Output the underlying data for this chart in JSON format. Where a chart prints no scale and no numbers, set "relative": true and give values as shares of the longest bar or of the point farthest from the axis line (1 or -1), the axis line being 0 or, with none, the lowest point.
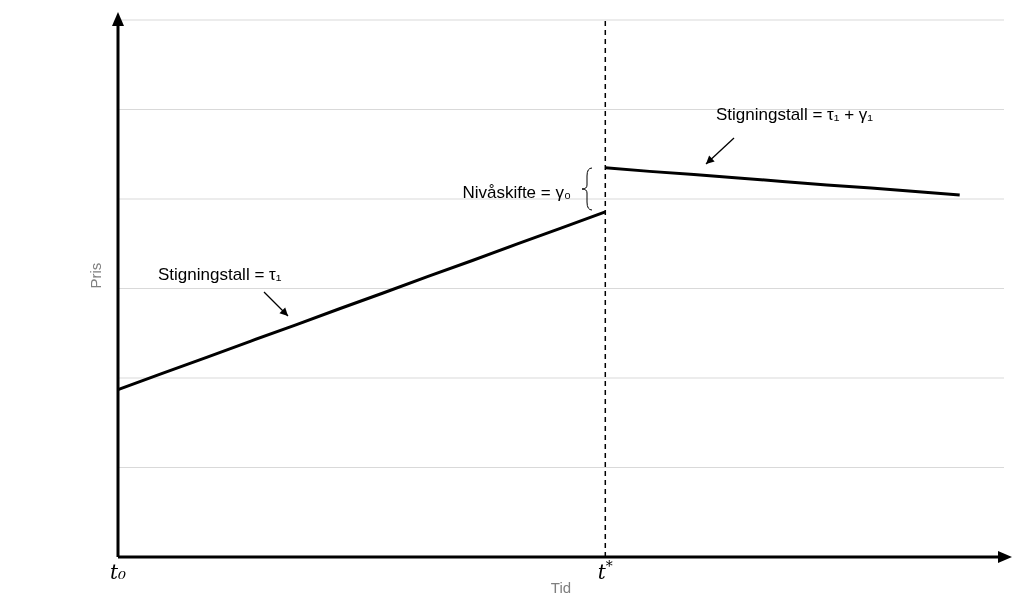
{
  "chart_data": {
    "type": "line",
    "relative": true,
    "xlabel": "Tid",
    "ylabel": "Pris",
    "categories": [
      "t₀",
      null,
      null,
      null,
      null,
      null,
      null,
      null,
      null,
      null,
      null,
      "t$^{*}$",
      null,
      null,
      null,
      null,
      null,
      null,
      null,
      null,
      null
    ],
    "series": [
      {
        "color": "#000000",
        "values": [
          0.43,
          0.472,
          0.513,
          0.555,
          0.596,
          0.638,
          0.679,
          0.721,
          0.762,
          0.804,
          0.845,
          0.887,
          null,
          null,
          null,
          null,
          null,
          null,
          null,
          null,
          null
        ]
      },
      {
        "color": "#000000",
        "values": [
          null,
          null,
          null,
          null,
          null,
          null,
          null,
          null,
          null,
          null,
          null,
          1,
          0.991,
          0.983,
          0.974,
          0.965,
          0.956,
          0.948,
          0.939,
          0.93,
          null
        ]
      }
    ],
    "ref_lines": [
      {
        "axis": "x",
        "value": "t$^{*}$",
        "color": "#000000",
        "line_style": "dashed"
      }
    ],
    "annotations": [
      "Stigningstall = τ₁",
      "Nivåskifte = γ₀",
      "Stigningstall = τ₁ + γ₁"
    ],
    "grid": "y",
    "marker": "none",
    "line_style": "solid"
  }
}
